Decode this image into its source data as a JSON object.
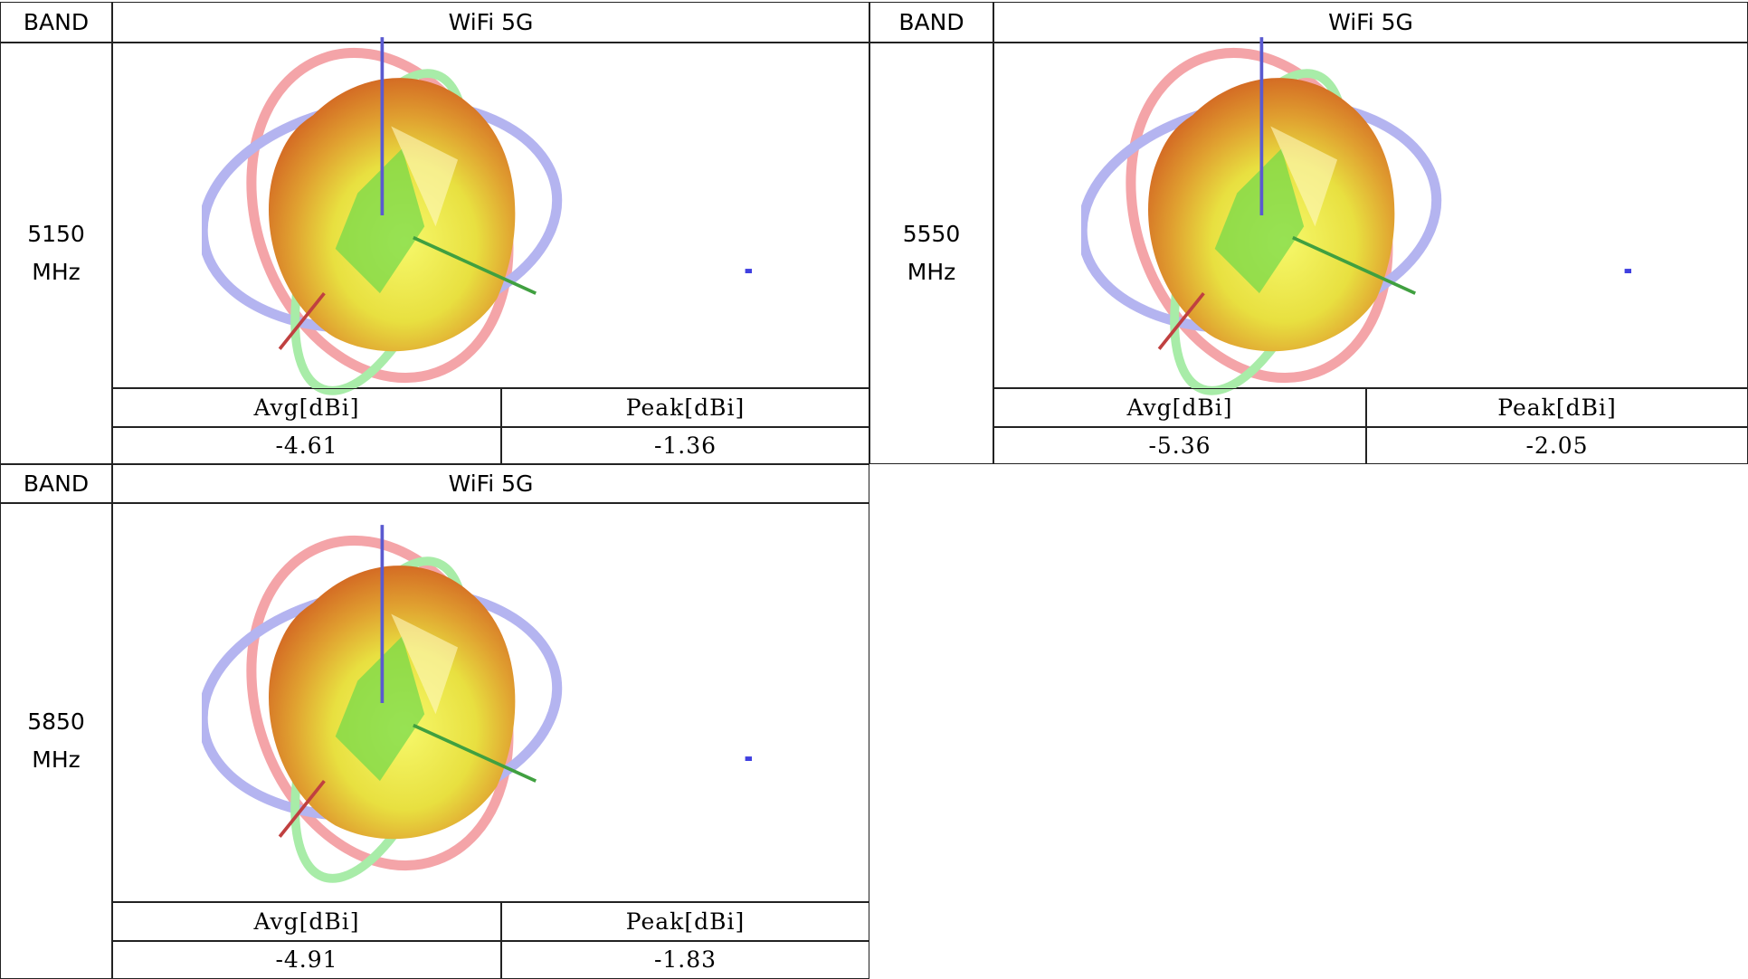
{
  "blocks": [
    {
      "band_label": "BAND",
      "title": "WiFi 5G",
      "frequency": "5150",
      "unit": "MHz",
      "avg_label": "Avg[dBi]",
      "peak_label": "Peak[dBi]",
      "avg": -4.61,
      "peak": -1.36
    },
    {
      "band_label": "BAND",
      "title": "WiFi 5G",
      "frequency": "5550",
      "unit": "MHz",
      "avg_label": "Avg[dBi]",
      "peak_label": "Peak[dBi]",
      "avg": -5.36,
      "peak": -2.05
    },
    {
      "band_label": "BAND",
      "title": "WiFi 5G",
      "frequency": "5850",
      "unit": "MHz",
      "avg_label": "Avg[dBi]",
      "peak_label": "Peak[dBi]",
      "avg": -4.91,
      "peak": -1.83
    }
  ]
}
